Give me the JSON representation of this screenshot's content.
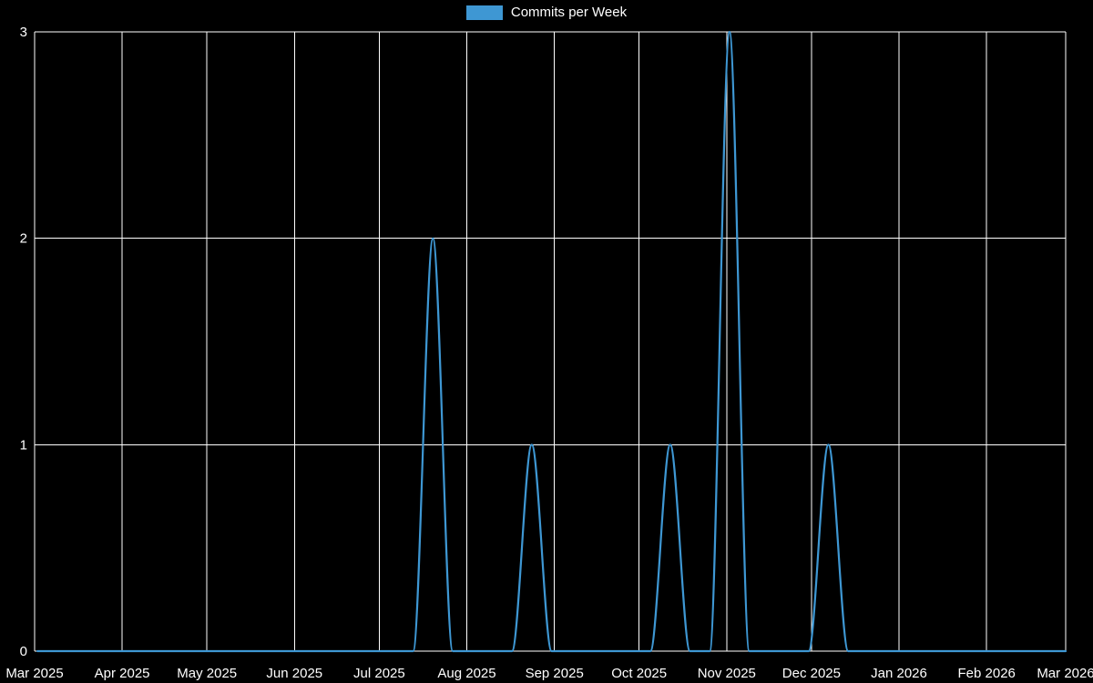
{
  "page": {
    "background": "#000000"
  },
  "legend": {
    "label": "Commits per Week"
  },
  "chart_data": {
    "type": "line",
    "title": "Commits per Week",
    "background": "#000000",
    "grid": true,
    "grid_color": "#ffffff",
    "axis_text_color": "#ffffff",
    "legend_position": "top-center",
    "x_range": [
      "2025-03-01",
      "2026-03-01"
    ],
    "ylim": [
      0,
      3
    ],
    "y_ticks": [
      0,
      1,
      2,
      3
    ],
    "x_ticks": [
      {
        "date": "2025-03-01",
        "label": "Mar 2025"
      },
      {
        "date": "2025-04-01",
        "label": "Apr 2025"
      },
      {
        "date": "2025-05-01",
        "label": "May 2025"
      },
      {
        "date": "2025-06-01",
        "label": "Jun 2025"
      },
      {
        "date": "2025-07-01",
        "label": "Jul 2025"
      },
      {
        "date": "2025-08-01",
        "label": "Aug 2025"
      },
      {
        "date": "2025-09-01",
        "label": "Sep 2025"
      },
      {
        "date": "2025-10-01",
        "label": "Oct 2025"
      },
      {
        "date": "2025-11-01",
        "label": "Nov 2025"
      },
      {
        "date": "2025-12-01",
        "label": "Dec 2025"
      },
      {
        "date": "2026-01-01",
        "label": "Jan 2026"
      },
      {
        "date": "2026-02-01",
        "label": "Feb 2026"
      },
      {
        "date": "2026-03-01",
        "label": "Mar 2026"
      }
    ],
    "series": [
      {
        "name": "Commits per Week",
        "color": "#3e97d3",
        "points": [
          [
            "2025-03-02",
            0
          ],
          [
            "2025-03-09",
            0
          ],
          [
            "2025-03-16",
            0
          ],
          [
            "2025-03-23",
            0
          ],
          [
            "2025-03-30",
            0
          ],
          [
            "2025-04-06",
            0
          ],
          [
            "2025-04-13",
            0
          ],
          [
            "2025-04-20",
            0
          ],
          [
            "2025-04-27",
            0
          ],
          [
            "2025-05-04",
            0
          ],
          [
            "2025-05-11",
            0
          ],
          [
            "2025-05-18",
            0
          ],
          [
            "2025-05-25",
            0
          ],
          [
            "2025-06-01",
            0
          ],
          [
            "2025-06-08",
            0
          ],
          [
            "2025-06-15",
            0
          ],
          [
            "2025-06-22",
            0
          ],
          [
            "2025-06-29",
            0
          ],
          [
            "2025-07-06",
            0
          ],
          [
            "2025-07-13",
            0
          ],
          [
            "2025-07-20",
            2
          ],
          [
            "2025-07-27",
            0
          ],
          [
            "2025-08-03",
            0
          ],
          [
            "2025-08-10",
            0
          ],
          [
            "2025-08-17",
            0
          ],
          [
            "2025-08-24",
            1
          ],
          [
            "2025-08-31",
            0
          ],
          [
            "2025-09-07",
            0
          ],
          [
            "2025-09-14",
            0
          ],
          [
            "2025-09-21",
            0
          ],
          [
            "2025-09-28",
            0
          ],
          [
            "2025-10-05",
            0
          ],
          [
            "2025-10-12",
            1
          ],
          [
            "2025-10-19",
            0
          ],
          [
            "2025-10-26",
            0
          ],
          [
            "2025-11-02",
            3
          ],
          [
            "2025-11-09",
            0
          ],
          [
            "2025-11-16",
            0
          ],
          [
            "2025-11-23",
            0
          ],
          [
            "2025-11-30",
            0
          ],
          [
            "2025-12-07",
            1
          ],
          [
            "2025-12-14",
            0
          ],
          [
            "2025-12-21",
            0
          ],
          [
            "2025-12-28",
            0
          ],
          [
            "2026-01-04",
            0
          ],
          [
            "2026-01-11",
            0
          ],
          [
            "2026-01-18",
            0
          ],
          [
            "2026-01-25",
            0
          ],
          [
            "2026-02-01",
            0
          ],
          [
            "2026-02-08",
            0
          ],
          [
            "2026-02-15",
            0
          ],
          [
            "2026-02-22",
            0
          ],
          [
            "2026-03-01",
            0
          ]
        ]
      }
    ]
  }
}
